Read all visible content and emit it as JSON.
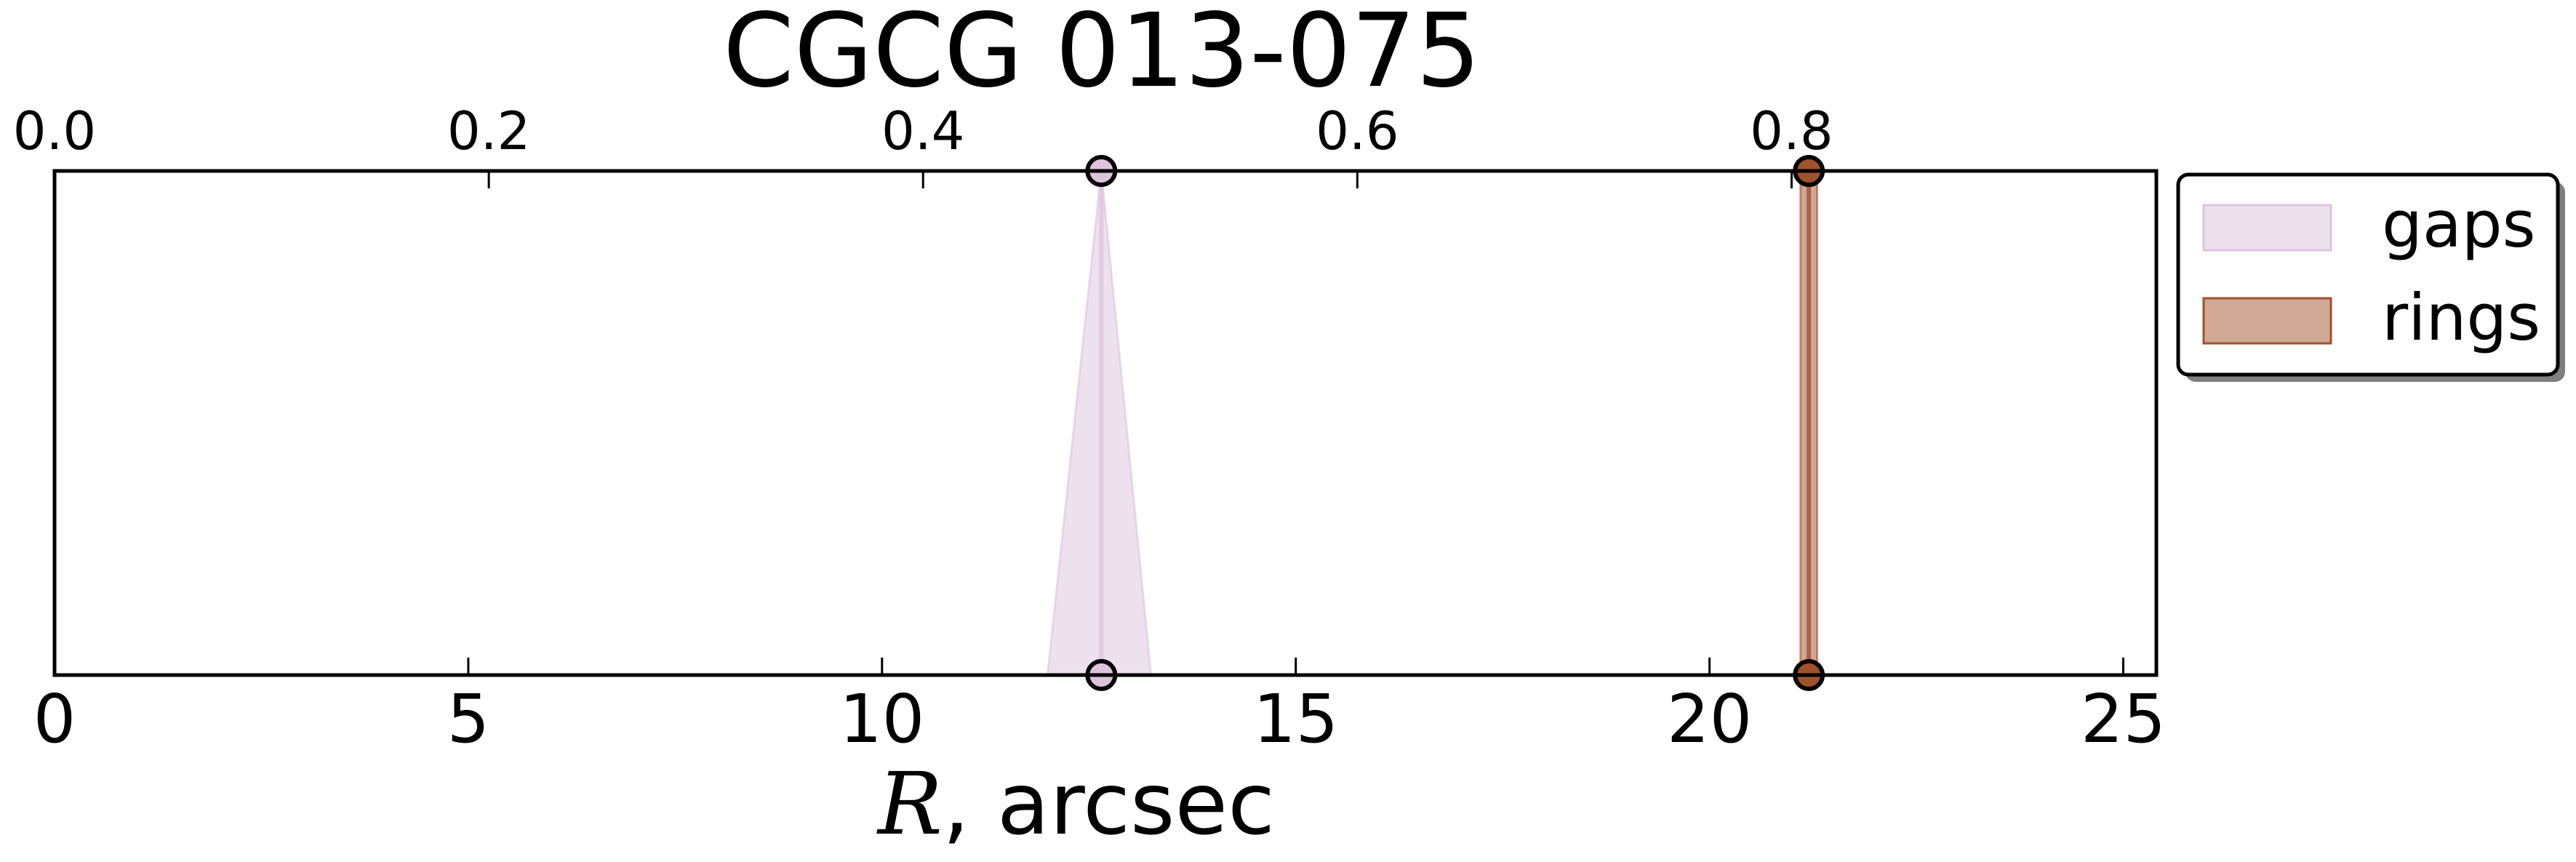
{
  "chart_data": {
    "type": "area",
    "title": "CGCG 013-075",
    "xlabel": {
      "symbol": "R",
      "rest": ", arcsec"
    },
    "xlim": [
      0,
      25.4
    ],
    "x_ticks": [
      0,
      5,
      10,
      15,
      20,
      25
    ],
    "x_tick_labels": [
      "0",
      "5",
      "10",
      "15",
      "20",
      "25"
    ],
    "top_xlim": [
      0,
      0.968
    ],
    "top_ticks": [
      0.0,
      0.2,
      0.4,
      0.6,
      0.8
    ],
    "top_tick_labels": [
      "0.0",
      "0.2",
      "0.4",
      "0.6",
      "0.8"
    ],
    "grid": false,
    "legend_placement": "outside-upper-right",
    "series": [
      {
        "name": "gaps",
        "color": "#ddc3dd",
        "position": 12.65,
        "band_bottom": [
          12.0,
          13.25
        ],
        "band_top": [
          12.65,
          12.65
        ]
      },
      {
        "name": "rings",
        "color": "#a0522d",
        "position": 21.2,
        "band_bottom": [
          21.1,
          21.3
        ],
        "band_top": [
          21.1,
          21.3
        ]
      }
    ]
  }
}
